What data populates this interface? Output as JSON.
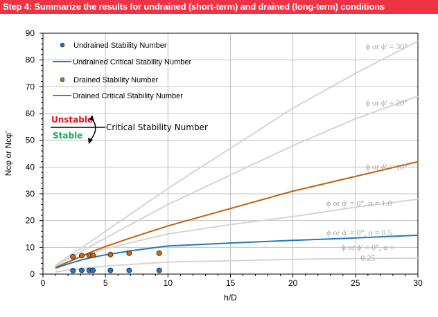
{
  "banner": {
    "title": "Step 4: Summarize the results for undrained (short-term) and drained (long-term) conditions",
    "color": "#ee3344"
  },
  "chart_data": {
    "type": "line",
    "title": "",
    "xlabel": "h/D",
    "ylabel": "Ncφ or Ncφ'",
    "xlim": [
      0,
      30
    ],
    "ylim": [
      0,
      90
    ],
    "xticks": [
      0,
      5,
      10,
      15,
      20,
      25,
      30
    ],
    "yticks": [
      0,
      10,
      20,
      30,
      40,
      50,
      60,
      70,
      80,
      90
    ],
    "grid": true,
    "legend_position": "upper-left-inside",
    "reference_curves": [
      {
        "name": "ϕ or ϕ' = 30°",
        "color": "#d4d4d4",
        "x": [
          1,
          2,
          3,
          5,
          10,
          15,
          20,
          25,
          30
        ],
        "y": [
          3.2,
          6.5,
          9.5,
          16,
          32,
          47,
          62,
          75,
          87
        ]
      },
      {
        "name": "ϕ or ϕ' = 20°",
        "color": "#d4d4d4",
        "x": [
          1,
          2,
          3,
          5,
          10,
          15,
          20,
          25,
          30
        ],
        "y": [
          3,
          5.8,
          8.3,
          13.5,
          26,
          37,
          48,
          58,
          66.5
        ]
      },
      {
        "name": "ϕ or ϕ' = 0°, α = 1.0",
        "color": "#d4d4d4",
        "x": [
          1,
          2,
          3,
          5,
          10,
          15,
          20,
          25,
          30
        ],
        "y": [
          2.5,
          4.5,
          6.5,
          9.5,
          15,
          18.5,
          21.5,
          25,
          28
        ]
      },
      {
        "name": "ϕ or ϕ' = 0°, α = 0.25",
        "color": "#d4d4d4",
        "x": [
          1,
          2,
          3,
          5,
          10,
          15,
          20,
          25,
          30
        ],
        "y": [
          0.8,
          1.5,
          2,
          3,
          4.5,
          5,
          5.5,
          5.8,
          6
        ]
      }
    ],
    "series": [
      {
        "name": "Undrained Stability Number",
        "kind": "scatter",
        "color": "#1f77c4",
        "x": [
          2.4,
          3.1,
          3.7,
          4.0,
          5.4,
          6.9,
          9.3
        ],
        "y": [
          1.3,
          1.4,
          1.4,
          1.4,
          1.4,
          1.4,
          1.4
        ]
      },
      {
        "name": "Undrained Critical Stability Number",
        "kind": "line",
        "color": "#1f77c4",
        "note": "ϕ or ϕ' = 0°, α = 0.5",
        "x": [
          1,
          2,
          3,
          4,
          5,
          7,
          10,
          15,
          20,
          25,
          30
        ],
        "y": [
          2.2,
          3.8,
          5.2,
          6.3,
          7.2,
          8.7,
          10.5,
          11.6,
          12.6,
          13.5,
          14.5
        ]
      },
      {
        "name": "Drained Stability Number",
        "kind": "scatter",
        "color": "#cc6611",
        "x": [
          2.4,
          3.1,
          3.7,
          4.0,
          5.4,
          6.9,
          9.3
        ],
        "y": [
          6.5,
          6.9,
          7.0,
          7.0,
          7.3,
          7.8,
          7.8
        ]
      },
      {
        "name": "Drained Critical Stability Number",
        "kind": "line",
        "color": "#c0600a",
        "note": "ϕ or ϕ' = 10°",
        "x": [
          1,
          2,
          3,
          4,
          5,
          7,
          10,
          15,
          20,
          25,
          30
        ],
        "y": [
          2.5,
          4.5,
          6.5,
          8.5,
          10.3,
          13.5,
          18,
          24.5,
          31,
          36.5,
          42
        ]
      }
    ],
    "annotations": [
      {
        "text": "ϕ or ϕ' = 30°",
        "x": 27.5,
        "y": 84
      },
      {
        "text": "ϕ or ϕ' = 20°",
        "x": 27.5,
        "y": 63
      },
      {
        "text": "ϕ or ϕ' = 10°",
        "x": 27.5,
        "y": 39
      },
      {
        "text": "ϕ or ϕ' = 0°, α = 1.0",
        "x": 25.3,
        "y": 25.5
      },
      {
        "text": "ϕ or ϕ' = 0°, α = 0.5",
        "x": 25.3,
        "y": 14.5
      },
      {
        "text": "ϕ or ϕ' = 0°, α =",
        "x": 26,
        "y": 9
      },
      {
        "text": "0.25",
        "x": 26,
        "y": 5
      }
    ],
    "inset": {
      "unstable": "Unstable",
      "stable": "Stable",
      "label": "Critical Stability Number",
      "unstable_color": "#e8101c",
      "stable_color": "#1aaa55"
    }
  }
}
